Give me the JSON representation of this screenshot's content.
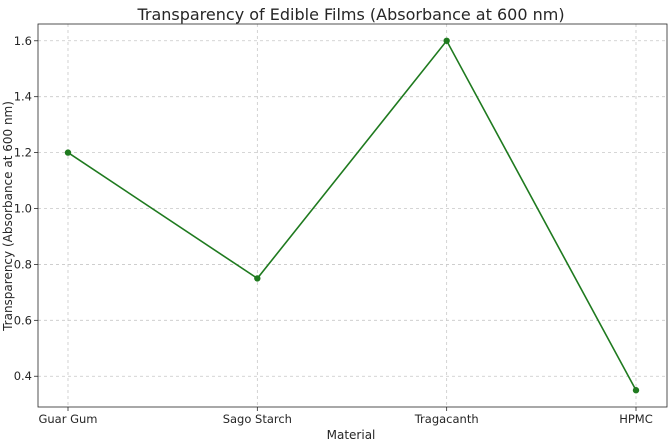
{
  "chart_data": {
    "type": "line",
    "title": "Transparency of Edible Films (Absorbance at 600 nm)",
    "xlabel": "Material",
    "ylabel": "Transparency (Absorbance at 600 nm)",
    "categories": [
      "Guar Gum",
      "Sago Starch",
      "Tragacanth",
      "HPMC"
    ],
    "series": [
      {
        "values": [
          1.2,
          0.75,
          1.6,
          0.35
        ],
        "color": "#1f7a1f",
        "marker": "circle"
      }
    ],
    "yticks": [
      "0.4",
      "0.6",
      "0.8",
      "1.0",
      "1.2",
      "1.4",
      "1.6"
    ],
    "ylim": [
      0.29,
      1.66
    ],
    "grid": true
  }
}
